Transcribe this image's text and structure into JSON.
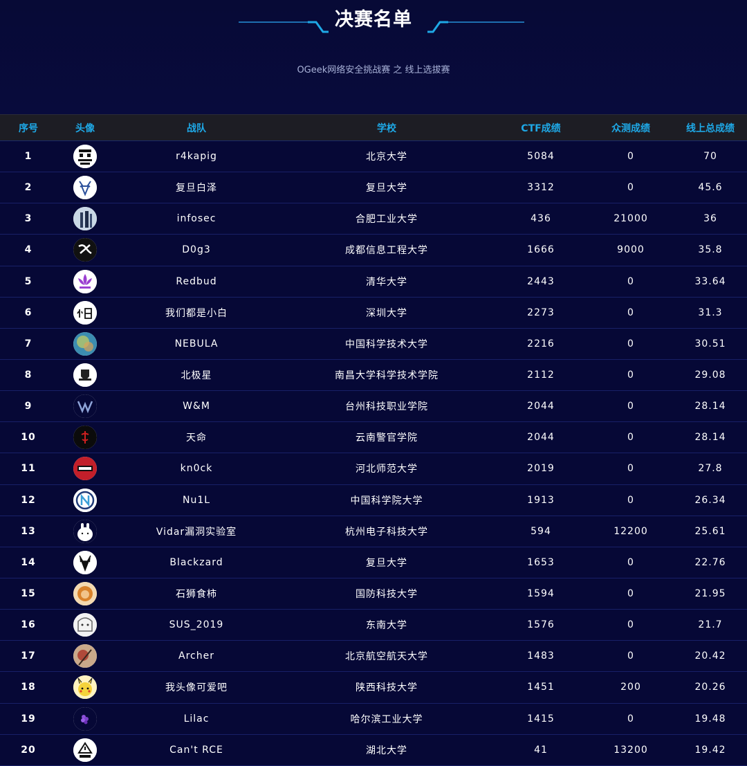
{
  "page": {
    "title": "决赛名单",
    "subtitle": "OGeek网络安全挑战赛 之 线上选拔赛"
  },
  "table": {
    "columns": [
      "序号",
      "头像",
      "战队",
      "学校",
      "CTF成绩",
      "众测成绩",
      "线上总成绩"
    ],
    "rows": [
      {
        "rank": "1",
        "team": "r4kapig",
        "school": "北京大学",
        "ctf": "5084",
        "crowd": "0",
        "total": "70",
        "avatar_icon": "pixel-pig-icon"
      },
      {
        "rank": "2",
        "team": "复旦白泽",
        "school": "复旦大学",
        "ctf": "3312",
        "crowd": "0",
        "total": "45.6",
        "avatar_icon": "blue-deer-icon"
      },
      {
        "rank": "3",
        "team": "infosec",
        "school": "合肥工业大学",
        "ctf": "436",
        "crowd": "21000",
        "total": "36",
        "avatar_icon": "figures-icon"
      },
      {
        "rank": "4",
        "team": "D0g3",
        "school": "成都信息工程大学",
        "ctf": "1666",
        "crowd": "9000",
        "total": "35.8",
        "avatar_icon": "calligraphy-icon"
      },
      {
        "rank": "5",
        "team": "Redbud",
        "school": "清华大学",
        "ctf": "2443",
        "crowd": "0",
        "total": "33.64",
        "avatar_icon": "lotus-icon"
      },
      {
        "rank": "6",
        "team": "我们都是小白",
        "school": "深圳大学",
        "ctf": "2273",
        "crowd": "0",
        "total": "31.3",
        "avatar_icon": "xiaobai-text-icon"
      },
      {
        "rank": "7",
        "team": "NEBULA",
        "school": "中国科学技术大学",
        "ctf": "2216",
        "crowd": "0",
        "total": "30.51",
        "avatar_icon": "nebula-icon"
      },
      {
        "rank": "8",
        "team": "北极星",
        "school": "南昌大学科学技术学院",
        "ctf": "2112",
        "crowd": "0",
        "total": "29.08",
        "avatar_icon": "shield-icon"
      },
      {
        "rank": "9",
        "team": "W&M",
        "school": "台州科技职业学院",
        "ctf": "2044",
        "crowd": "0",
        "total": "28.14",
        "avatar_icon": "wm-logo-icon"
      },
      {
        "rank": "10",
        "team": "天命",
        "school": "云南警官学院",
        "ctf": "2044",
        "crowd": "0",
        "total": "28.14",
        "avatar_icon": "red-mark-icon"
      },
      {
        "rank": "11",
        "team": "kn0ck",
        "school": "河北师范大学",
        "ctf": "2019",
        "crowd": "0",
        "total": "27.8",
        "avatar_icon": "kn0ck-badge-icon"
      },
      {
        "rank": "12",
        "team": "Nu1L",
        "school": "中国科学院大学",
        "ctf": "1913",
        "crowd": "0",
        "total": "26.34",
        "avatar_icon": "nu1l-logo-icon"
      },
      {
        "rank": "13",
        "team": "Vidar漏洞实验室",
        "school": "杭州电子科技大学",
        "ctf": "594",
        "crowd": "12200",
        "total": "25.61",
        "avatar_icon": "bunny-icon"
      },
      {
        "rank": "14",
        "team": "Blackzard",
        "school": "复旦大学",
        "ctf": "1653",
        "crowd": "0",
        "total": "22.76",
        "avatar_icon": "black-deer-icon"
      },
      {
        "rank": "15",
        "team": "石狮食柿",
        "school": "国防科技大学",
        "ctf": "1594",
        "crowd": "0",
        "total": "21.95",
        "avatar_icon": "lion-icon"
      },
      {
        "rank": "16",
        "team": "SUS_2019",
        "school": "东南大学",
        "ctf": "1576",
        "crowd": "0",
        "total": "21.7",
        "avatar_icon": "anime-girl-icon"
      },
      {
        "rank": "17",
        "team": "Archer",
        "school": "北京航空航天大学",
        "ctf": "1483",
        "crowd": "0",
        "total": "20.42",
        "avatar_icon": "archer-icon"
      },
      {
        "rank": "18",
        "team": "我头像可爱吧",
        "school": "陕西科技大学",
        "ctf": "1451",
        "crowd": "200",
        "total": "20.26",
        "avatar_icon": "pikachu-icon"
      },
      {
        "rank": "19",
        "team": "Lilac",
        "school": "哈尔滨工业大学",
        "ctf": "1415",
        "crowd": "0",
        "total": "19.48",
        "avatar_icon": "lilac-flower-icon"
      },
      {
        "rank": "20",
        "team": "Can't RCE",
        "school": "湖北大学",
        "ctf": "41",
        "crowd": "13200",
        "total": "19.42",
        "avatar_icon": "rce-triangle-icon"
      }
    ]
  },
  "colors": {
    "background": "#060836",
    "header_row": "#1d1d24",
    "header_text": "#1ea8e6",
    "row_border": "#182068"
  }
}
